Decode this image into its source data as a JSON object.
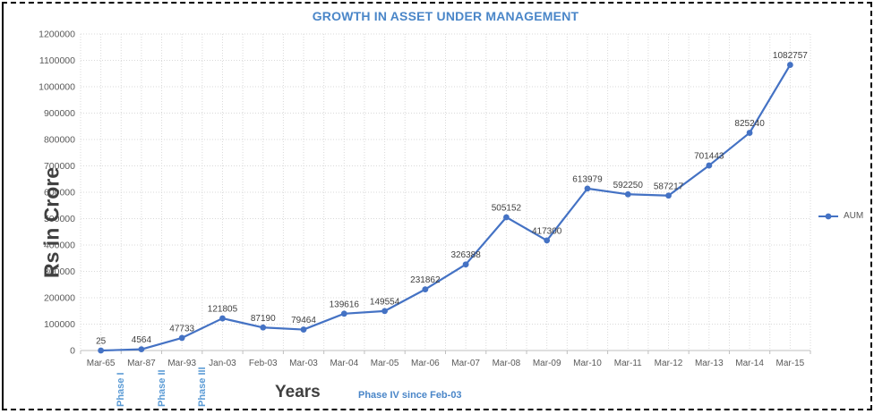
{
  "chart": {
    "title": "GROWTH IN ASSET UNDER MANAGEMENT",
    "y_axis_title": "Rs in Crore",
    "x_axis_title": "Years",
    "legend_label": "AUM",
    "phases": [
      {
        "label": "Phase I"
      },
      {
        "label": "Phase II"
      },
      {
        "label": "Phase III"
      }
    ],
    "phase4_note": "Phase IV since Feb-03",
    "colors": {
      "series_line": "#4472C4",
      "title_text": "#4A86C8",
      "phase_text": "#5B9BD5",
      "axis_text": "#595959",
      "data_label_text": "#404040",
      "gridline": "#D9D9D9",
      "axis_line": "#BFBFBF",
      "border": "#000000"
    }
  },
  "chart_data": {
    "type": "line",
    "title": "GROWTH IN ASSET UNDER MANAGEMENT",
    "xlabel": "Years",
    "ylabel": "Rs in Crore",
    "categories": [
      "Mar-65",
      "Mar-87",
      "Mar-93",
      "Jan-03",
      "Feb-03",
      "Mar-03",
      "Mar-04",
      "Mar-05",
      "Mar-06",
      "Mar-07",
      "Mar-08",
      "Mar-09",
      "Mar-10",
      "Mar-11",
      "Mar-12",
      "Mar-13",
      "Mar-14",
      "Mar-15"
    ],
    "series": [
      {
        "name": "AUM",
        "values": [
          25,
          4564,
          47733,
          121805,
          87190,
          79464,
          139616,
          149554,
          231862,
          326388,
          505152,
          417300,
          613979,
          592250,
          587217,
          701443,
          825240,
          1082757
        ]
      }
    ],
    "ylim": [
      0,
      1200000
    ],
    "ytick_step": 100000,
    "grid": true,
    "data_labels": true,
    "legend_position": "right",
    "annotations": [
      "Phase I",
      "Phase II",
      "Phase III",
      "Phase IV since Feb-03"
    ]
  }
}
